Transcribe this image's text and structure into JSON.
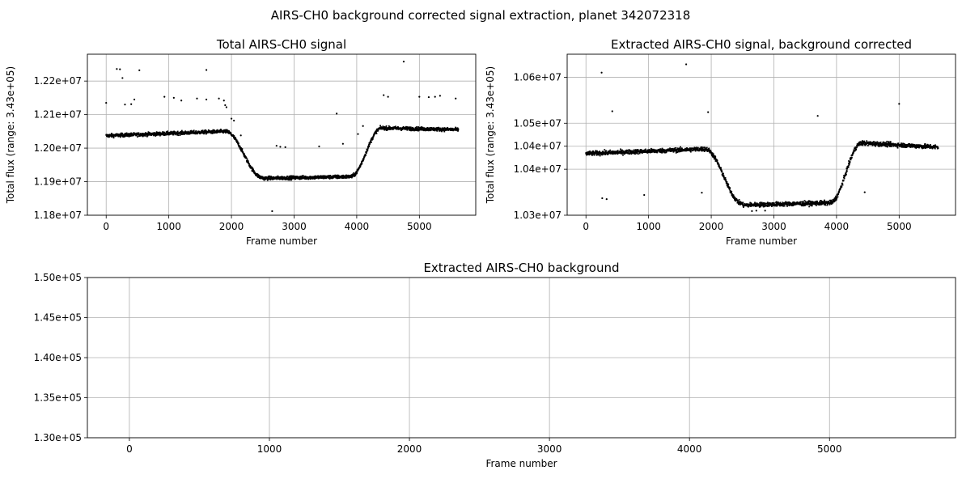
{
  "figure": {
    "suptitle": "AIRS-CH0 background corrected signal extraction, planet 342072318"
  },
  "colors": {
    "points": "#000000",
    "grid": "#b0b0b0",
    "axes": "#000000",
    "background": "#ffffff"
  },
  "chart_data": [
    {
      "id": "total",
      "type": "scatter",
      "title": "Total AIRS-CH0 signal",
      "xlabel": "Frame number",
      "ylabel": "Total flux (range: 3.43e+05)",
      "xlim": [
        -300,
        5900
      ],
      "ylim": [
        11800000,
        12280000
      ],
      "xticks": [
        0,
        1000,
        2000,
        3000,
        4000,
        5000
      ],
      "xtick_labels": [
        "0",
        "1000",
        "2000",
        "3000",
        "4000",
        "5000"
      ],
      "yticks": [
        11800000,
        11900000,
        12000000,
        12100000,
        12200000
      ],
      "ytick_labels": [
        "1.18e+07",
        "1.19e+07",
        "1.20e+07",
        "1.21e+07",
        "1.22e+07"
      ],
      "grid": true,
      "n_frames": 5625,
      "baseline_segments": [
        {
          "x": [
            0,
            1900
          ],
          "y": [
            12037000,
            12050000
          ]
        },
        {
          "x": [
            1900,
            2500
          ],
          "y": [
            12050000,
            11912000
          ]
        },
        {
          "x": [
            2500,
            3900
          ],
          "y": [
            11910000,
            11915000
          ]
        },
        {
          "x": [
            3900,
            4400
          ],
          "y": [
            11915000,
            12060000
          ]
        },
        {
          "x": [
            4400,
            5625
          ],
          "y": [
            12060000,
            12055000
          ]
        }
      ],
      "noise_band": 5000,
      "outliers": [
        {
          "x": 0,
          "y": 12135000
        },
        {
          "x": 170,
          "y": 12236000
        },
        {
          "x": 220,
          "y": 12235000
        },
        {
          "x": 260,
          "y": 12209000
        },
        {
          "x": 300,
          "y": 12130000
        },
        {
          "x": 400,
          "y": 12131000
        },
        {
          "x": 450,
          "y": 12145000
        },
        {
          "x": 530,
          "y": 12232000
        },
        {
          "x": 930,
          "y": 12153000
        },
        {
          "x": 1080,
          "y": 12150000
        },
        {
          "x": 1200,
          "y": 12142000
        },
        {
          "x": 1450,
          "y": 12148000
        },
        {
          "x": 1600,
          "y": 12233000
        },
        {
          "x": 1600,
          "y": 12145000
        },
        {
          "x": 1800,
          "y": 12148000
        },
        {
          "x": 1880,
          "y": 12142000
        },
        {
          "x": 1900,
          "y": 12128000
        },
        {
          "x": 1920,
          "y": 12122000
        },
        {
          "x": 2000,
          "y": 12088000
        },
        {
          "x": 2040,
          "y": 12082000
        },
        {
          "x": 2150,
          "y": 12038000
        },
        {
          "x": 2650,
          "y": 11812000
        },
        {
          "x": 2720,
          "y": 12007000
        },
        {
          "x": 2780,
          "y": 12004000
        },
        {
          "x": 2860,
          "y": 12003000
        },
        {
          "x": 3400,
          "y": 12005000
        },
        {
          "x": 3680,
          "y": 12103000
        },
        {
          "x": 3780,
          "y": 12013000
        },
        {
          "x": 4020,
          "y": 12042000
        },
        {
          "x": 4100,
          "y": 12066000
        },
        {
          "x": 4430,
          "y": 12158000
        },
        {
          "x": 4500,
          "y": 12153000
        },
        {
          "x": 4750,
          "y": 12258000
        },
        {
          "x": 5000,
          "y": 12153000
        },
        {
          "x": 5150,
          "y": 12152000
        },
        {
          "x": 5250,
          "y": 12153000
        },
        {
          "x": 5330,
          "y": 12156000
        },
        {
          "x": 5580,
          "y": 12148000
        }
      ]
    },
    {
      "id": "extracted",
      "type": "scatter",
      "title": "Extracted AIRS-CH0 signal, background corrected",
      "xlabel": "Frame number",
      "ylabel": "Total flux (range: 3.43e+05)",
      "xlim": [
        -300,
        5900
      ],
      "ylim": [
        10300000,
        10650000
      ],
      "xticks": [
        0,
        1000,
        2000,
        3000,
        4000,
        5000
      ],
      "xtick_labels": [
        "0",
        "1000",
        "2000",
        "3000",
        "4000",
        "5000"
      ],
      "yticks": [
        10300000,
        10400000,
        10500000,
        10600000
      ],
      "yticks_drawn": [
        10300000,
        10400000,
        10450000,
        10500000,
        10600000
      ],
      "ytick_labels": [
        "1.03e+07",
        "1.04e+07",
        "1.04e+07",
        "1.05e+07",
        "1.06e+07"
      ],
      "grid": true,
      "n_frames": 5625,
      "baseline_segments": [
        {
          "x": [
            0,
            1900
          ],
          "y": [
            10434000,
            10444000
          ]
        },
        {
          "x": [
            1900,
            2500
          ],
          "y": [
            10444000,
            10325000
          ]
        },
        {
          "x": [
            2500,
            3900
          ],
          "y": [
            10322000,
            10327000
          ]
        },
        {
          "x": [
            3900,
            4400
          ],
          "y": [
            10327000,
            10457000
          ]
        },
        {
          "x": [
            4400,
            5625
          ],
          "y": [
            10457000,
            10448000
          ]
        }
      ],
      "noise_band": 4500,
      "outliers": [
        {
          "x": 250,
          "y": 10610000
        },
        {
          "x": 260,
          "y": 10337000
        },
        {
          "x": 330,
          "y": 10335000
        },
        {
          "x": 420,
          "y": 10526000
        },
        {
          "x": 930,
          "y": 10344000
        },
        {
          "x": 1600,
          "y": 10628000
        },
        {
          "x": 1850,
          "y": 10349000
        },
        {
          "x": 1950,
          "y": 10524000
        },
        {
          "x": 2650,
          "y": 10309000
        },
        {
          "x": 2720,
          "y": 10310000
        },
        {
          "x": 2860,
          "y": 10310000
        },
        {
          "x": 3700,
          "y": 10516000
        },
        {
          "x": 4450,
          "y": 10350000
        },
        {
          "x": 5000,
          "y": 10542000
        }
      ]
    },
    {
      "id": "background",
      "type": "scatter",
      "title": "Extracted AIRS-CH0 background",
      "xlabel": "Frame number",
      "ylabel": "",
      "xlim": [
        -300,
        5900
      ],
      "ylim": [
        130000,
        150000
      ],
      "xticks": [
        0,
        1000,
        2000,
        3000,
        4000,
        5000
      ],
      "xtick_labels": [
        "0",
        "1000",
        "2000",
        "3000",
        "4000",
        "5000"
      ],
      "yticks": [
        130000,
        135000,
        140000,
        145000,
        150000
      ],
      "ytick_labels": [
        "1.30e+05",
        "1.35e+05",
        "1.40e+05",
        "1.45e+05",
        "1.50e+05"
      ],
      "grid": true,
      "points": []
    }
  ]
}
